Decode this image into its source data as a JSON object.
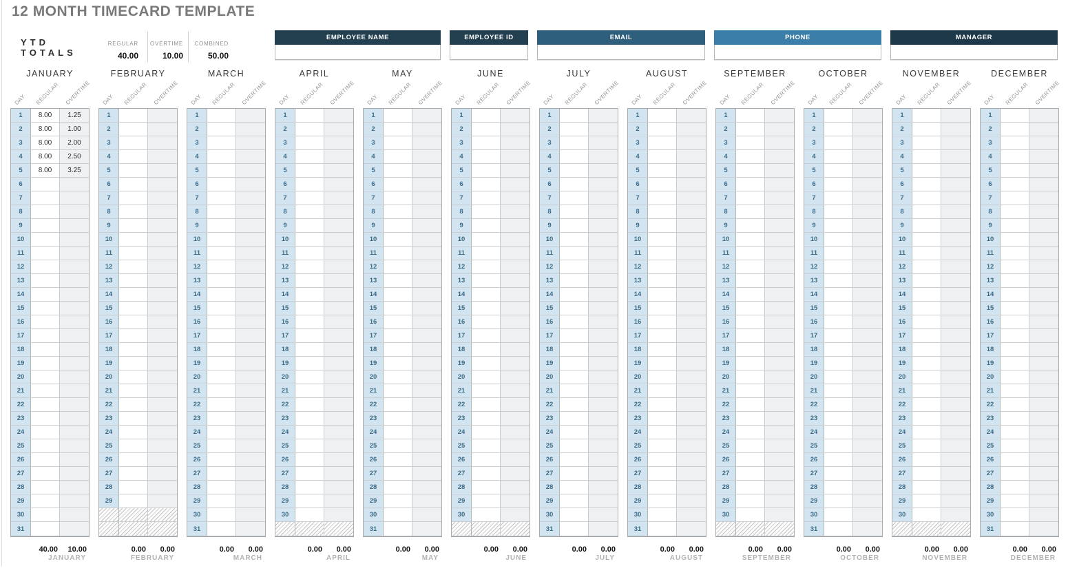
{
  "title": "12 MONTH TIMECARD TEMPLATE",
  "ytd": {
    "label": "YTD TOTALS",
    "columns": [
      {
        "label": "REGULAR",
        "value": "40.00"
      },
      {
        "label": "OVERTIME",
        "value": "10.00"
      },
      {
        "label": "COMBINED",
        "value": "50.00"
      }
    ]
  },
  "employee_fields": [
    {
      "label": "EMPLOYEE NAME",
      "value": "",
      "color": "#234051"
    },
    {
      "label": "EMPLOYEE ID",
      "value": "",
      "color": "#234051"
    },
    {
      "label": "EMAIL",
      "value": "",
      "color": "#2e5f7d"
    },
    {
      "label": "PHONE",
      "value": "",
      "color": "#3b7ea9"
    },
    {
      "label": "MANAGER",
      "value": "",
      "color": "#1d3848"
    }
  ],
  "column_headers": {
    "day": "DAY",
    "regular": "REGULAR",
    "overtime": "OVERTIME"
  },
  "colors": {
    "day_fill": "#d2e4f0",
    "day_text": "#3c6c88",
    "overtime_fill": "#eef0f1",
    "title_gray": "#7a7a7a"
  },
  "months": [
    {
      "name": "JANUARY",
      "days": 31,
      "hatch_rows": 0,
      "total_regular": "40.00",
      "total_overtime": "10.00",
      "entries": [
        {
          "day": 1,
          "regular": "8.00",
          "overtime": "1.25"
        },
        {
          "day": 2,
          "regular": "8.00",
          "overtime": "1.00"
        },
        {
          "day": 3,
          "regular": "8.00",
          "overtime": "2.00"
        },
        {
          "day": 4,
          "regular": "8.00",
          "overtime": "2.50"
        },
        {
          "day": 5,
          "regular": "8.00",
          "overtime": "3.25"
        }
      ]
    },
    {
      "name": "FEBRUARY",
      "days": 29,
      "hatch_rows": 2,
      "total_regular": "0.00",
      "total_overtime": "0.00",
      "entries": []
    },
    {
      "name": "MARCH",
      "days": 31,
      "hatch_rows": 0,
      "total_regular": "0.00",
      "total_overtime": "0.00",
      "entries": []
    },
    {
      "name": "APRIL",
      "days": 30,
      "hatch_rows": 1,
      "total_regular": "0.00",
      "total_overtime": "0.00",
      "entries": []
    },
    {
      "name": "MAY",
      "days": 31,
      "hatch_rows": 0,
      "total_regular": "0.00",
      "total_overtime": "0.00",
      "entries": []
    },
    {
      "name": "JUNE",
      "days": 30,
      "hatch_rows": 1,
      "total_regular": "0.00",
      "total_overtime": "0.00",
      "entries": []
    },
    {
      "name": "JULY",
      "days": 31,
      "hatch_rows": 0,
      "total_regular": "0.00",
      "total_overtime": "0.00",
      "entries": []
    },
    {
      "name": "AUGUST",
      "days": 31,
      "hatch_rows": 0,
      "total_regular": "0.00",
      "total_overtime": "0.00",
      "entries": []
    },
    {
      "name": "SEPTEMBER",
      "days": 30,
      "hatch_rows": 1,
      "total_regular": "0.00",
      "total_overtime": "0.00",
      "entries": []
    },
    {
      "name": "OCTOBER",
      "days": 31,
      "hatch_rows": 0,
      "total_regular": "0.00",
      "total_overtime": "0.00",
      "entries": []
    },
    {
      "name": "NOVEMBER",
      "days": 30,
      "hatch_rows": 1,
      "total_regular": "0.00",
      "total_overtime": "0.00",
      "entries": []
    },
    {
      "name": "DECEMBER",
      "days": 31,
      "hatch_rows": 0,
      "total_regular": "0.00",
      "total_overtime": "0.00",
      "entries": []
    }
  ]
}
